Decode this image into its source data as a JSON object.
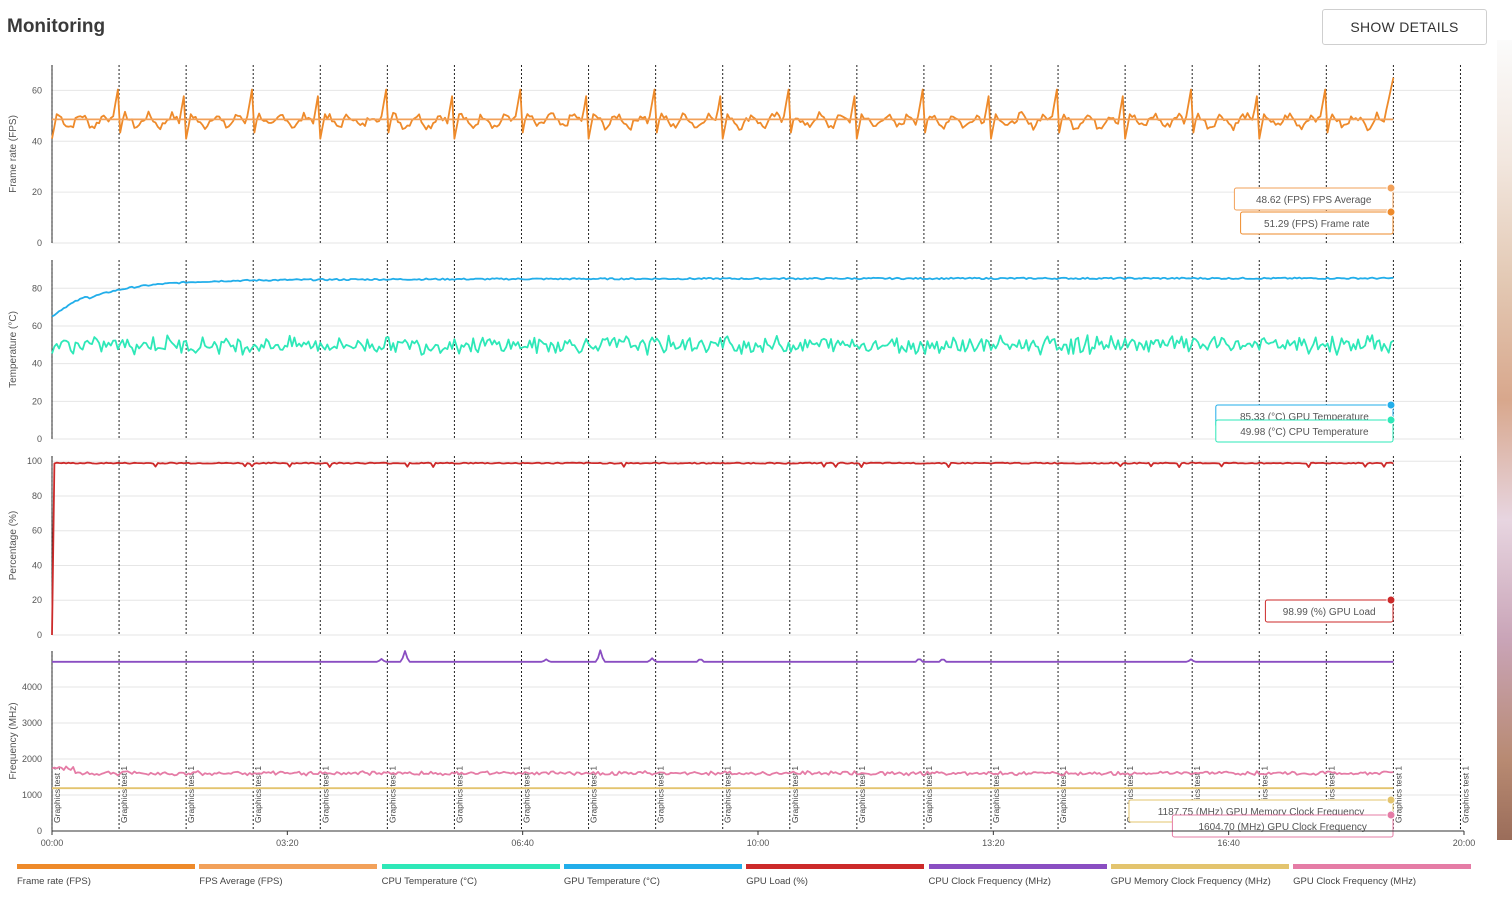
{
  "header": {
    "title": "Monitoring",
    "button_label": "SHOW DETAILS"
  },
  "colors": {
    "fps": "#ee8a2a",
    "fps_avg": "#f2a15a",
    "cpu_temp": "#2ee8b8",
    "gpu_temp": "#22aeea",
    "gpu_load": "#cc2a2a",
    "cpu_clock": "#8a4ec2",
    "gpu_mem_clock": "#e3c46e",
    "gpu_clock": "#e57ca6"
  },
  "chart_data": {
    "type": "line",
    "x_ticks": [
      "00:00",
      "03:20",
      "06:40",
      "10:00",
      "13:20",
      "16:40",
      "20:00"
    ],
    "x_range_seconds": [
      0,
      1200
    ],
    "markers": {
      "label": "Graphics test 1",
      "times_seconds": [
        0,
        57,
        114,
        171,
        228,
        285,
        342,
        399,
        456,
        513,
        570,
        627,
        684,
        741,
        798,
        855,
        912,
        969,
        1026,
        1083,
        1140,
        1197,
        1254
      ]
    },
    "panels": [
      {
        "ylabel": "Frame rate (FPS)",
        "ylim": [
          0,
          70
        ],
        "yticks": [
          0,
          20,
          40,
          60
        ],
        "series": [
          {
            "name": "Frame rate (FPS)",
            "color_key": "fps",
            "pattern": "sawtooth",
            "base": 48,
            "peak": 63,
            "dip": 41
          },
          {
            "name": "FPS Average (FPS)",
            "color_key": "fps_avg",
            "pattern": "flat",
            "value": 48.62
          }
        ],
        "tooltips": [
          {
            "text": "48.62 (FPS) FPS Average",
            "color_key": "fps_avg",
            "value": 48.62
          },
          {
            "text": "51.29 (FPS) Frame rate",
            "color_key": "fps",
            "value": 51.29
          }
        ]
      },
      {
        "ylabel": "Temperature (°C)",
        "ylim": [
          0,
          95
        ],
        "yticks": [
          0,
          20,
          40,
          60,
          80
        ],
        "series": [
          {
            "name": "GPU Temperature (°C)",
            "color_key": "gpu_temp",
            "pattern": "rise",
            "start": 65,
            "value": 85.33
          },
          {
            "name": "CPU Temperature (°C)",
            "color_key": "cpu_temp",
            "pattern": "noise",
            "value": 49.98,
            "amp": 5
          }
        ],
        "tooltips": [
          {
            "text": "85.33 (°C) GPU Temperature",
            "color_key": "gpu_temp",
            "value": 85.33
          },
          {
            "text": "49.98 (°C) CPU Temperature",
            "color_key": "cpu_temp",
            "value": 49.98
          }
        ]
      },
      {
        "ylabel": "Percentage (%)",
        "ylim": [
          0,
          103
        ],
        "yticks": [
          0,
          20,
          40,
          60,
          80,
          100
        ],
        "series": [
          {
            "name": "GPU Load (%)",
            "color_key": "gpu_load",
            "pattern": "load",
            "value": 98.99
          }
        ],
        "tooltips": [
          {
            "text": "98.99 (%) GPU Load",
            "color_key": "gpu_load",
            "value": 98.99
          }
        ]
      },
      {
        "ylabel": "Frequency (MHz)",
        "ylim": [
          0,
          5000
        ],
        "yticks": [
          0,
          1000,
          2000,
          3000,
          4000
        ],
        "series": [
          {
            "name": "CPU Clock Frequency (MHz)",
            "color_key": "cpu_clock",
            "pattern": "flat-spikes",
            "value": 4700
          },
          {
            "name": "GPU Clock Frequency (MHz)",
            "color_key": "gpu_clock",
            "pattern": "noise",
            "value": 1604.7,
            "amp": 60,
            "start": 1750
          },
          {
            "name": "GPU Memory Clock Frequency (MHz)",
            "color_key": "gpu_mem_clock",
            "pattern": "flat",
            "value": 1187.75
          }
        ],
        "tooltips": [
          {
            "text": "1187.75 (MHz) GPU Memory Clock Frequency",
            "color_key": "gpu_mem_clock",
            "value": 1187.75
          },
          {
            "text": "1604.70 (MHz) GPU Clock Frequency",
            "color_key": "gpu_clock",
            "value": 1604.7
          }
        ]
      }
    ]
  },
  "legend": [
    {
      "label": "Frame rate (FPS)",
      "color_key": "fps"
    },
    {
      "label": "FPS Average (FPS)",
      "color_key": "fps_avg"
    },
    {
      "label": "CPU Temperature (°C)",
      "color_key": "cpu_temp"
    },
    {
      "label": "GPU Temperature (°C)",
      "color_key": "gpu_temp"
    },
    {
      "label": "GPU Load (%)",
      "color_key": "gpu_load"
    },
    {
      "label": "CPU Clock Frequency (MHz)",
      "color_key": "cpu_clock"
    },
    {
      "label": "GPU Memory Clock Frequency (MHz)",
      "color_key": "gpu_mem_clock"
    },
    {
      "label": "GPU Clock Frequency (MHz)",
      "color_key": "gpu_clock"
    }
  ]
}
